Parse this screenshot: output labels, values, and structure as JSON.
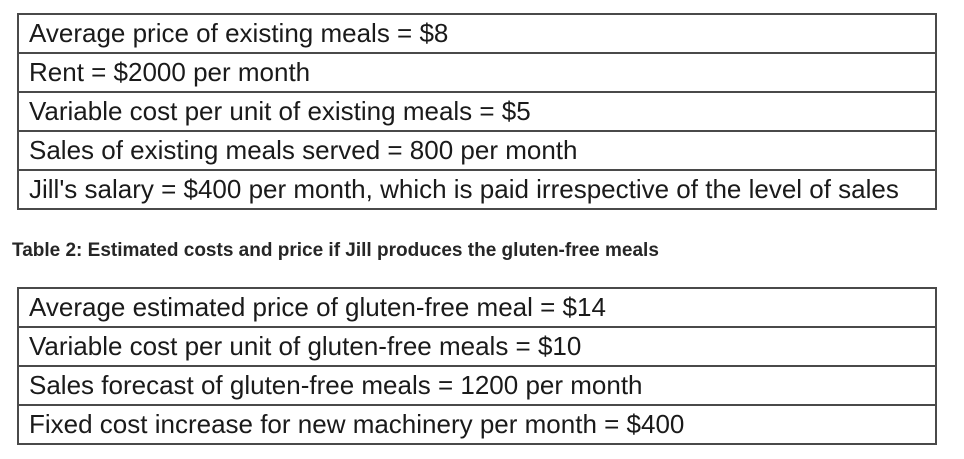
{
  "colors": {
    "background": "#ffffff",
    "table_border": "#4a4a4a",
    "body_text": "#1a1a1a",
    "caption_text": "#262626"
  },
  "table_existing": {
    "rows": [
      "Average price of existing meals = $8",
      "Rent = $2000 per month",
      "Variable cost per unit of existing meals = $5",
      "Sales of existing meals served = 800 per month",
      "Jill's salary = $400 per month, which is paid irrespective of the level of sales"
    ]
  },
  "caption": {
    "text": "Table 2: Estimated costs and price if Jill produces the gluten-free meals"
  },
  "table_gluten_free": {
    "rows": [
      "Average estimated price of gluten-free meal = $14",
      "Variable cost per unit of gluten-free meals = $10",
      "Sales forecast of gluten-free meals = 1200 per month",
      "Fixed cost increase for new machinery per month = $400"
    ]
  }
}
